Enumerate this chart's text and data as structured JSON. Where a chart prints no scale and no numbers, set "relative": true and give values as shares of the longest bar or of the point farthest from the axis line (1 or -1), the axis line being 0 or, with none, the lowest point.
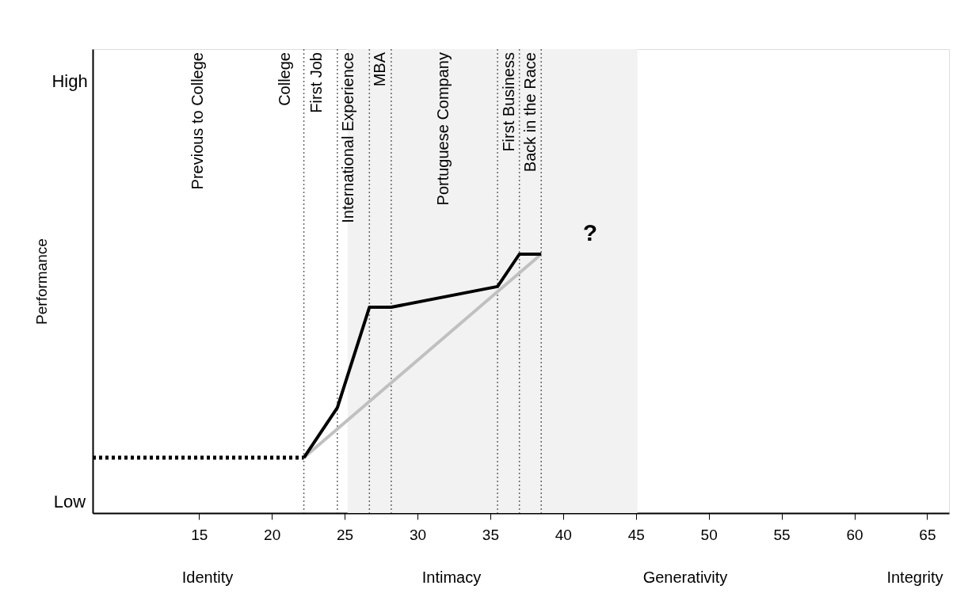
{
  "chart_data": {
    "type": "line",
    "ylabel": "Performance",
    "relative": true,
    "xlim": [
      7.7,
      66.5
    ],
    "xticks": [
      15,
      20,
      25,
      30,
      35,
      40,
      45,
      50,
      55,
      60,
      65
    ],
    "series": [
      {
        "type": "line",
        "color": "#000000",
        "line_style": "dotted",
        "x": [
          7.7,
          22.2
        ],
        "values": [
          0.214,
          0.214
        ]
      },
      {
        "type": "line",
        "color": "#c0c0c0",
        "line_style": "solid",
        "x": [
          22.2,
          38.5
        ],
        "values": [
          0.214,
          1
        ]
      },
      {
        "type": "line",
        "color": "#000000",
        "line_style": "solid",
        "x": [
          22.2,
          24.5,
          26.7,
          28.2,
          35.5,
          37.0,
          38.5
        ],
        "values": [
          0.214,
          0.407,
          0.795,
          0.795,
          0.875,
          1,
          1
        ]
      }
    ],
    "bands": [
      {
        "axis": "x",
        "from": 25.2,
        "to": 45.1,
        "color": "#f2f2f2"
      }
    ],
    "ref_lines": [
      {
        "axis": "x",
        "value": 22.2,
        "color": "#666666",
        "line_style": "dotted"
      },
      {
        "axis": "x",
        "value": 24.5,
        "color": "#666666",
        "line_style": "dotted"
      },
      {
        "axis": "x",
        "value": 26.7,
        "color": "#666666",
        "line_style": "dotted"
      },
      {
        "axis": "x",
        "value": 28.2,
        "color": "#666666",
        "line_style": "dotted"
      },
      {
        "axis": "x",
        "value": 35.5,
        "color": "#666666",
        "line_style": "dotted"
      },
      {
        "axis": "x",
        "value": 37.0,
        "color": "#666666",
        "line_style": "dotted"
      },
      {
        "axis": "x",
        "value": 38.5,
        "color": "#666666",
        "line_style": "dotted"
      }
    ],
    "annotations": [
      "High",
      "Low",
      "Previous to College",
      "College",
      "First Job",
      "International Experience",
      "MBA",
      "Portuguese Company",
      "First Business",
      "Back in the Race",
      "?",
      "Identity",
      "Intimacy",
      "Generativity",
      "Integrity"
    ]
  }
}
